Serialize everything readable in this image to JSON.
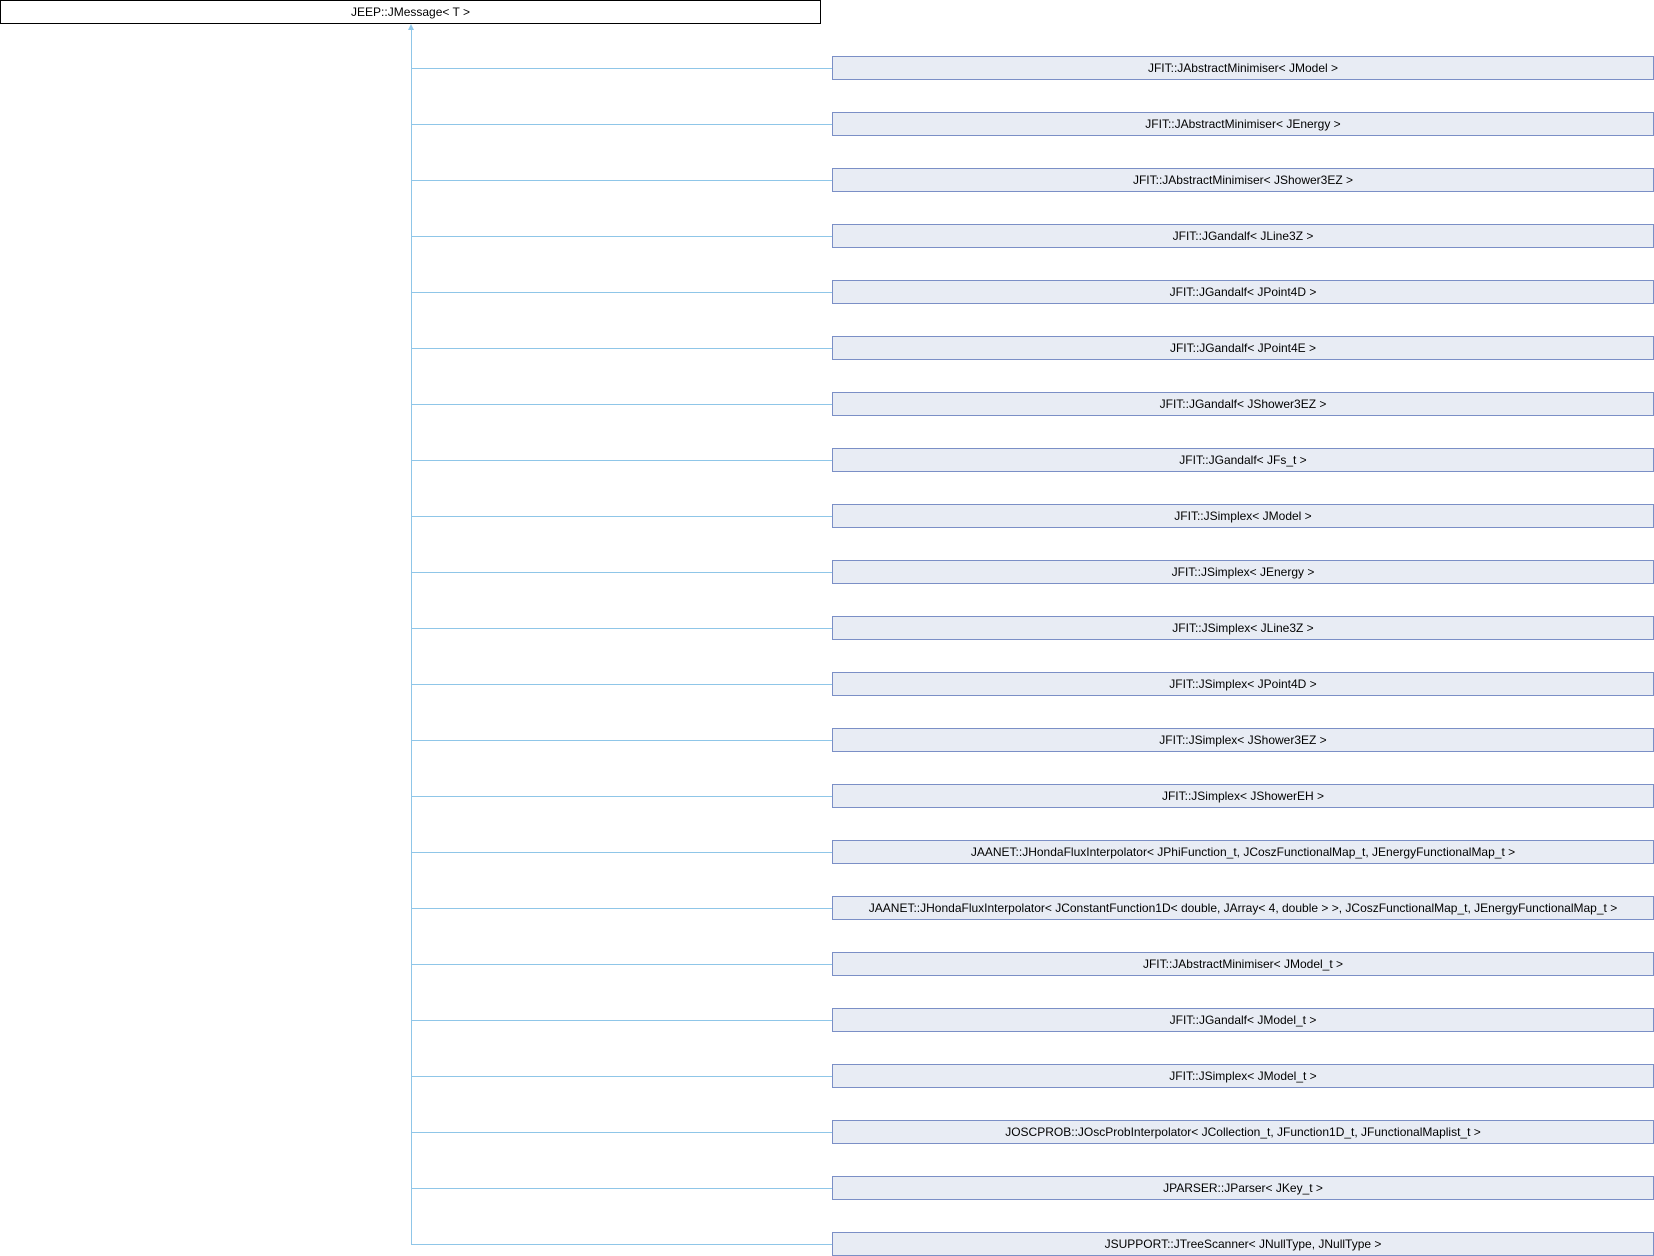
{
  "base_class": "JEEP::JMessage< T >",
  "derived_classes": [
    "JFIT::JAbstractMinimiser< JModel >",
    "JFIT::JAbstractMinimiser< JEnergy >",
    "JFIT::JAbstractMinimiser< JShower3EZ >",
    "JFIT::JGandalf< JLine3Z >",
    "JFIT::JGandalf< JPoint4D >",
    "JFIT::JGandalf< JPoint4E >",
    "JFIT::JGandalf< JShower3EZ >",
    "JFIT::JGandalf< JFs_t >",
    "JFIT::JSimplex< JModel >",
    "JFIT::JSimplex< JEnergy >",
    "JFIT::JSimplex< JLine3Z >",
    "JFIT::JSimplex< JPoint4D >",
    "JFIT::JSimplex< JShower3EZ >",
    "JFIT::JSimplex< JShowerEH >",
    "JAANET::JHondaFluxInterpolator< JPhiFunction_t, JCoszFunctionalMap_t, JEnergyFunctionalMap_t >",
    "JAANET::JHondaFluxInterpolator< JConstantFunction1D< double, JArray< 4, double > >, JCoszFunctionalMap_t, JEnergyFunctionalMap_t >",
    "JFIT::JAbstractMinimiser< JModel_t >",
    "JFIT::JGandalf< JModel_t >",
    "JFIT::JSimplex< JModel_t >",
    "JOSCPROB::JOscProbInterpolator< JCollection_t, JFunction1D_t, JFunctionalMaplist_t >",
    "JPARSER::JParser< JKey_t >",
    "JSUPPORT::JTreeScanner< JNullType, JNullType >"
  ],
  "colors": {
    "box_fill": "#e8ecf4",
    "box_border": "#7b8fc6",
    "edge": "#8fc6e8"
  }
}
